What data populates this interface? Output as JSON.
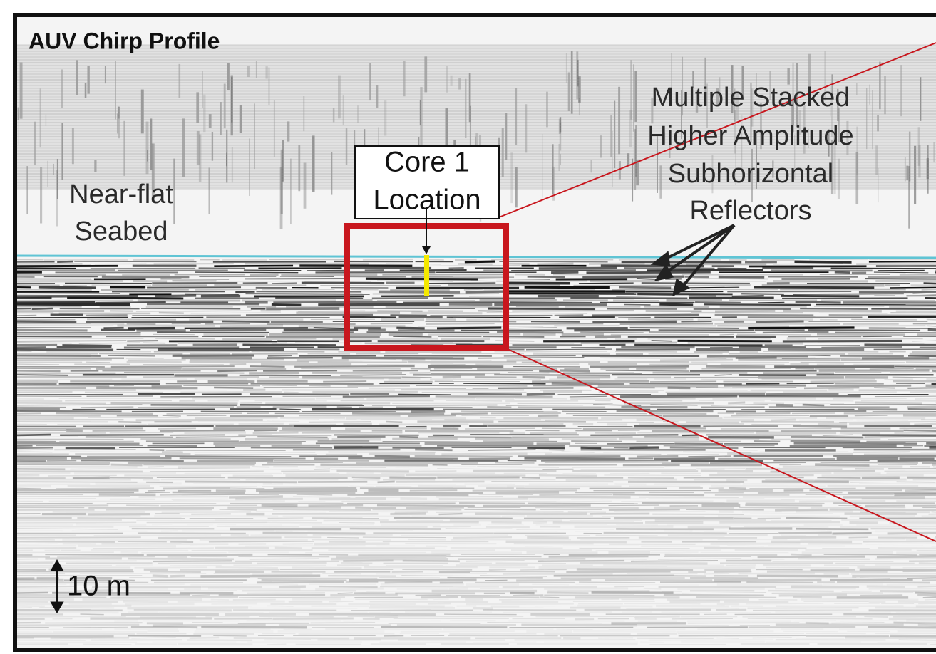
{
  "title": "AUV Chirp Profile",
  "annotations": {
    "seabed": [
      "Near-flat",
      "Seabed"
    ],
    "core": [
      "Core 1",
      "Location"
    ],
    "reflectors": [
      "Multiple Stacked",
      "Higher Amplitude",
      "Subhorizontal",
      "Reflectors"
    ]
  },
  "scale_bar": "10 m"
}
